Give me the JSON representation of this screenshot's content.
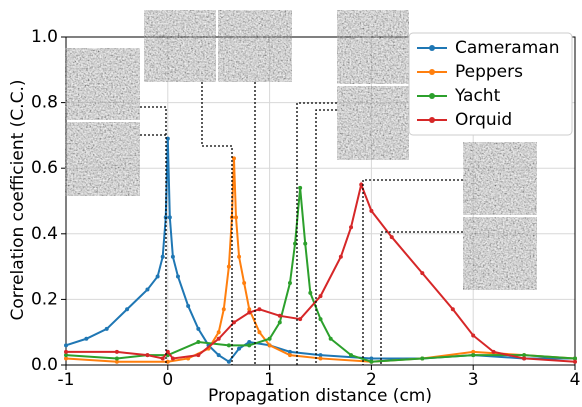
{
  "chart_data": {
    "type": "line",
    "xlabel": "Propagation distance (cm)",
    "ylabel": "Correlation coefficient (C.C.)",
    "xlim": [
      -1,
      4
    ],
    "ylim": [
      0,
      1
    ],
    "xticks": [
      -1,
      0,
      1,
      2,
      3,
      4
    ],
    "yticks": [
      {
        "value": 0,
        "label": "0.0"
      },
      0.2,
      0.4,
      0.6,
      0.8,
      {
        "value": 1,
        "label": "1.0"
      }
    ],
    "grid": true,
    "legend": "upper right",
    "series": [
      {
        "name": "Cameraman",
        "color": "#1f77b4",
        "x": [
          -1,
          -0.8,
          -0.6,
          -0.4,
          -0.2,
          -0.1,
          -0.05,
          -0.02,
          0,
          0.02,
          0.05,
          0.1,
          0.2,
          0.3,
          0.4,
          0.5,
          0.6,
          0.7,
          0.8,
          1.0,
          1.2,
          1.5,
          2.0,
          2.5,
          3.0,
          3.5,
          4.0
        ],
        "values": [
          0.06,
          0.08,
          0.11,
          0.17,
          0.23,
          0.27,
          0.33,
          0.45,
          0.69,
          0.45,
          0.33,
          0.27,
          0.18,
          0.11,
          0.06,
          0.03,
          0.01,
          0.05,
          0.07,
          0.06,
          0.04,
          0.03,
          0.02,
          0.02,
          0.03,
          0.02,
          0.02
        ]
      },
      {
        "name": "Peppers",
        "color": "#ff7f0e",
        "x": [
          -1,
          -0.5,
          0,
          0.2,
          0.4,
          0.5,
          0.55,
          0.6,
          0.63,
          0.65,
          0.67,
          0.7,
          0.75,
          0.8,
          0.9,
          1.0,
          1.2,
          1.5,
          2.0,
          2.5,
          3.0,
          3.5,
          4.0
        ],
        "values": [
          0.02,
          0.01,
          0.01,
          0.02,
          0.05,
          0.1,
          0.17,
          0.3,
          0.45,
          0.63,
          0.45,
          0.33,
          0.25,
          0.17,
          0.1,
          0.06,
          0.03,
          0.02,
          0.01,
          0.02,
          0.04,
          0.03,
          0.02
        ]
      },
      {
        "name": "Yacht",
        "color": "#2ca02c",
        "x": [
          -1,
          -0.5,
          -0.2,
          0,
          0.3,
          0.6,
          0.8,
          1.0,
          1.1,
          1.2,
          1.25,
          1.3,
          1.35,
          1.4,
          1.5,
          1.6,
          1.8,
          2.0,
          2.5,
          3.0,
          3.5,
          4.0
        ],
        "values": [
          0.03,
          0.02,
          0.03,
          0.03,
          0.07,
          0.06,
          0.06,
          0.08,
          0.13,
          0.25,
          0.37,
          0.54,
          0.37,
          0.22,
          0.14,
          0.08,
          0.03,
          0.01,
          0.02,
          0.03,
          0.03,
          0.02
        ]
      },
      {
        "name": "Orquid",
        "color": "#d62728",
        "x": [
          -1,
          -0.5,
          -0.2,
          -0.05,
          0,
          0.05,
          0.3,
          0.5,
          0.65,
          0.8,
          0.9,
          1.1,
          1.3,
          1.5,
          1.7,
          1.8,
          1.9,
          2.0,
          2.2,
          2.5,
          2.8,
          3.0,
          3.2,
          3.5,
          4.0
        ],
        "values": [
          0.04,
          0.04,
          0.03,
          0.02,
          0.04,
          0.02,
          0.03,
          0.08,
          0.13,
          0.16,
          0.17,
          0.15,
          0.14,
          0.21,
          0.33,
          0.42,
          0.55,
          0.47,
          0.39,
          0.28,
          0.17,
          0.09,
          0.04,
          0.02,
          0.01
        ]
      }
    ]
  }
}
